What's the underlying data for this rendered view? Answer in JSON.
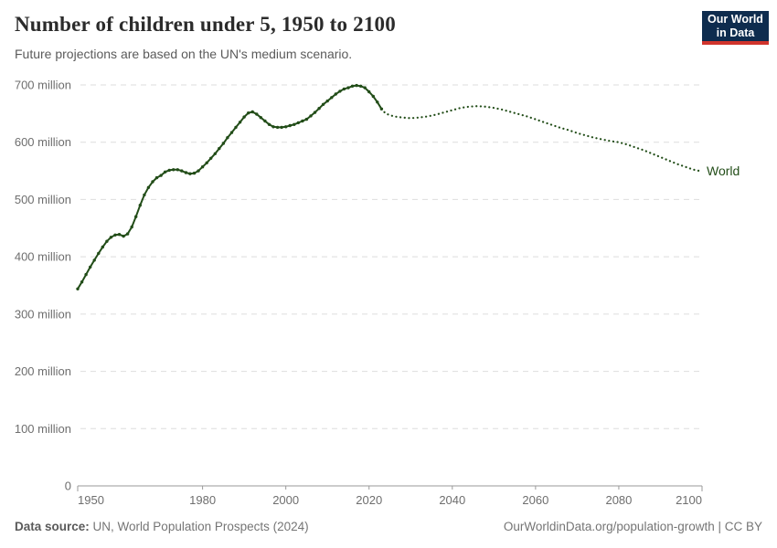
{
  "header": {
    "title": "Number of children under 5, 1950 to 2100",
    "subtitle": "Future projections are based on the UN's medium scenario."
  },
  "logo": {
    "line1": "Our World",
    "line2": "in Data",
    "bg_color": "#0e2c4e",
    "stripe_color": "#d0342c"
  },
  "footer": {
    "source_label": "Data source:",
    "source_value": "UN, World Population Prospects (2024)",
    "link": "OurWorldinData.org/population-growth | CC BY"
  },
  "chart_data": {
    "type": "line",
    "title": "Number of children under 5, 1950 to 2100",
    "subtitle": "Future projections are based on the UN's medium scenario.",
    "xlabel": "",
    "ylabel": "",
    "unit": "million",
    "xlim": [
      1950,
      2100
    ],
    "ylim": [
      0,
      700
    ],
    "grid": "horizontal dashed",
    "legend_position": "end-of-line label",
    "series_color": "#224d18",
    "grid_color": "#dedede",
    "axis_color": "#9a9a9a",
    "axis_text_color": "#6e6e6e",
    "xticks": [
      1950,
      1980,
      2000,
      2020,
      2040,
      2060,
      2080,
      2100
    ],
    "yticks": [
      {
        "value": 0,
        "label": "0"
      },
      {
        "value": 100,
        "label": "100 million"
      },
      {
        "value": 200,
        "label": "200 million"
      },
      {
        "value": 300,
        "label": "300 million"
      },
      {
        "value": 400,
        "label": "400 million"
      },
      {
        "value": 500,
        "label": "500 million"
      },
      {
        "value": 600,
        "label": "600 million"
      },
      {
        "value": 700,
        "label": "700 million"
      }
    ],
    "series": {
      "name": "World",
      "historical_style": "solid line with yearly point markers",
      "projection_style": "dotted",
      "historical": {
        "start_year": 1950,
        "step": 1,
        "values": [
          344,
          356,
          369,
          382,
          394,
          406,
          417,
          427,
          434,
          438,
          439,
          436,
          440,
          452,
          470,
          490,
          508,
          521,
          531,
          538,
          542,
          548,
          551,
          552,
          552,
          550,
          547,
          545,
          546,
          550,
          557,
          564,
          572,
          580,
          589,
          598,
          608,
          617,
          626,
          635,
          644,
          651,
          653,
          649,
          643,
          637,
          631,
          627,
          626,
          626,
          627,
          629,
          631,
          634,
          637,
          640,
          646,
          652,
          659,
          666,
          672,
          678,
          684,
          689,
          693,
          695,
          698,
          699,
          698,
          695,
          688,
          680,
          670,
          658
        ]
      },
      "projection": {
        "start_year": 2024,
        "step": 2,
        "values": [
          650,
          645,
          643,
          642,
          643,
          645,
          648,
          652,
          656,
          660,
          662,
          663,
          662,
          660,
          657,
          653,
          649,
          645,
          640,
          635,
          630,
          625,
          621,
          616,
          612,
          608,
          605,
          602,
          600,
          596,
          591,
          586,
          580,
          574,
          568,
          562,
          557,
          552,
          549
        ]
      }
    }
  }
}
